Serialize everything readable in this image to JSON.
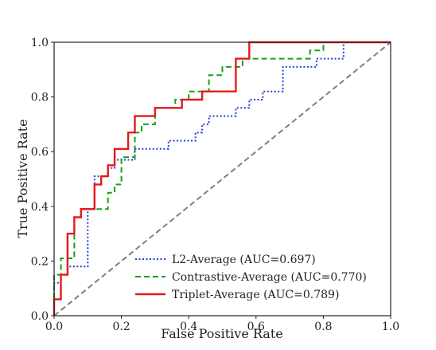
{
  "chart_data": {
    "type": "line",
    "title": "",
    "xlabel": "False Positive Rate",
    "ylabel": "True Positive Rate",
    "xlim": [
      0,
      1
    ],
    "ylim": [
      0,
      1
    ],
    "x_ticks": [
      "0.0",
      "0.2",
      "0.4",
      "0.6",
      "0.8",
      "1.0"
    ],
    "y_ticks": [
      "0.0",
      "0.2",
      "0.4",
      "0.6",
      "0.8",
      "1.0"
    ],
    "grid": false,
    "legend_position": "lower-right",
    "series": [
      {
        "name": "L2-Average (AUC=0.697)",
        "color": "#1f3fd8",
        "style": "dotted",
        "x": [
          0.0,
          0.0,
          0.02,
          0.02,
          0.04,
          0.04,
          0.06,
          0.06,
          0.1,
          0.1,
          0.12,
          0.12,
          0.16,
          0.16,
          0.18,
          0.18,
          0.24,
          0.24,
          0.34,
          0.34,
          0.42,
          0.42,
          0.44,
          0.44,
          0.46,
          0.46,
          0.54,
          0.54,
          0.58,
          0.58,
          0.62,
          0.62,
          0.66,
          0.66,
          0.68,
          0.68,
          0.78,
          0.78,
          0.82,
          0.82,
          0.86,
          0.86,
          1.0
        ],
        "y": [
          0.0,
          0.12,
          0.12,
          0.15,
          0.15,
          0.18,
          0.18,
          0.18,
          0.18,
          0.39,
          0.39,
          0.51,
          0.51,
          0.54,
          0.54,
          0.57,
          0.57,
          0.61,
          0.61,
          0.64,
          0.64,
          0.67,
          0.67,
          0.7,
          0.7,
          0.73,
          0.73,
          0.76,
          0.76,
          0.79,
          0.79,
          0.82,
          0.82,
          0.82,
          0.82,
          0.91,
          0.91,
          0.94,
          0.94,
          0.94,
          0.94,
          1.0,
          1.0
        ]
      },
      {
        "name": "Contrastive-Average (AUC=0.770)",
        "color": "#1a9f1a",
        "style": "dashed",
        "x": [
          0.0,
          0.0,
          0.02,
          0.02,
          0.06,
          0.06,
          0.08,
          0.08,
          0.1,
          0.1,
          0.16,
          0.16,
          0.18,
          0.18,
          0.2,
          0.2,
          0.24,
          0.24,
          0.26,
          0.26,
          0.3,
          0.3,
          0.36,
          0.36,
          0.4,
          0.4,
          0.46,
          0.46,
          0.5,
          0.5,
          0.54,
          0.54,
          0.56,
          0.56,
          0.58,
          0.58,
          0.76,
          0.76,
          0.8,
          0.8,
          1.0
        ],
        "y": [
          0.0,
          0.15,
          0.15,
          0.21,
          0.21,
          0.36,
          0.36,
          0.39,
          0.39,
          0.39,
          0.39,
          0.45,
          0.45,
          0.48,
          0.48,
          0.58,
          0.58,
          0.67,
          0.67,
          0.7,
          0.7,
          0.76,
          0.76,
          0.79,
          0.79,
          0.82,
          0.82,
          0.88,
          0.88,
          0.91,
          0.91,
          0.91,
          0.91,
          0.94,
          0.94,
          0.94,
          0.94,
          0.97,
          0.97,
          1.0,
          1.0
        ]
      },
      {
        "name": "Triplet-Average (AUC=0.789)",
        "color": "#e41a1a",
        "style": "solid",
        "x": [
          0.0,
          0.0,
          0.02,
          0.02,
          0.04,
          0.04,
          0.06,
          0.06,
          0.08,
          0.08,
          0.12,
          0.12,
          0.14,
          0.14,
          0.16,
          0.16,
          0.18,
          0.18,
          0.22,
          0.22,
          0.24,
          0.24,
          0.3,
          0.3,
          0.38,
          0.38,
          0.44,
          0.44,
          0.54,
          0.54,
          0.58,
          0.58,
          1.0
        ],
        "y": [
          0.0,
          0.06,
          0.06,
          0.15,
          0.15,
          0.3,
          0.3,
          0.36,
          0.36,
          0.39,
          0.39,
          0.48,
          0.48,
          0.51,
          0.51,
          0.55,
          0.55,
          0.61,
          0.61,
          0.67,
          0.67,
          0.73,
          0.73,
          0.76,
          0.76,
          0.79,
          0.79,
          0.82,
          0.82,
          0.94,
          0.94,
          1.0,
          1.0
        ]
      },
      {
        "name": "",
        "color": "#808080",
        "style": "dashed",
        "x": [
          0.0,
          1.0
        ],
        "y": [
          0.0,
          1.0
        ]
      }
    ]
  }
}
